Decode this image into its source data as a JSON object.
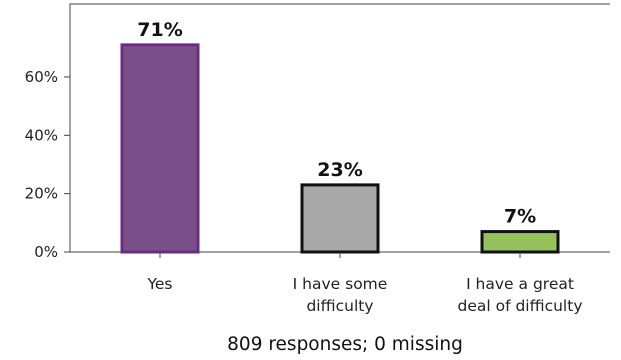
{
  "chart_data": {
    "type": "bar",
    "categories": [
      [
        "Yes"
      ],
      [
        "I have some",
        "difficulty"
      ],
      [
        "I have a great",
        "deal of difficulty"
      ]
    ],
    "values": [
      71,
      23,
      7
    ],
    "data_labels": [
      "71%",
      "23%",
      "7%"
    ],
    "bar_colors": [
      "#7b4f8a",
      "#a9a9a9",
      "#97c15c"
    ],
    "bar_border_colors": [
      "#6a2d82",
      "#111111",
      "#111111"
    ],
    "y_ticks": [
      0,
      20,
      40,
      60
    ],
    "y_tick_labels": [
      "0%",
      "20%",
      "40%",
      "60%"
    ],
    "ylim": [
      0,
      85
    ],
    "grid": false,
    "legend": "none",
    "title": "",
    "xlabel": "",
    "ylabel": ""
  },
  "footer": "809 responses; 0 missing"
}
